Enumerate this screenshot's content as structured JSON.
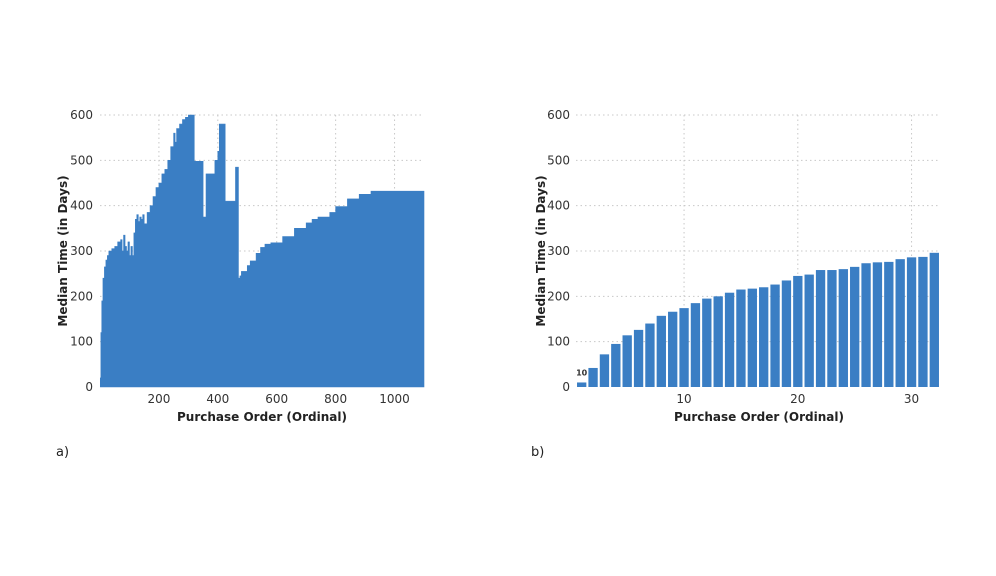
{
  "panels": [
    {
      "label": "a)"
    },
    {
      "label": "b)"
    }
  ],
  "colors": {
    "bar": "#3a7ec4",
    "grid": "#c8c8c8"
  },
  "chart_data": [
    {
      "type": "area",
      "xlabel": "Purchase Order (Ordinal)",
      "ylabel": "Median Time (in Days)",
      "xlim": [
        0,
        1100
      ],
      "ylim": [
        0,
        600
      ],
      "xticks": [
        200,
        400,
        600,
        800,
        1000
      ],
      "yticks": [
        0,
        100,
        200,
        300,
        400,
        500,
        600
      ],
      "grid": true,
      "series": [
        {
          "x": [
            1,
            3,
            6,
            10,
            15,
            20,
            25,
            30,
            40,
            50,
            60,
            70,
            75,
            80,
            85,
            90,
            95,
            100,
            105,
            110,
            115,
            120,
            125,
            130,
            135,
            140,
            145,
            150,
            160,
            170,
            180,
            190,
            200,
            210,
            220,
            230,
            240,
            250,
            255,
            260,
            270,
            280,
            290,
            300,
            310,
            320,
            330,
            340,
            350,
            360,
            370,
            372,
            380,
            390,
            400,
            405,
            410,
            420,
            425,
            440,
            460,
            470,
            475,
            480,
            490,
            500,
            505,
            510,
            520,
            530,
            540,
            545,
            550,
            560,
            580,
            600,
            620,
            640,
            660,
            680,
            700,
            720,
            740,
            760,
            780,
            800,
            820,
            840,
            860,
            880,
            900,
            920,
            940,
            960,
            980,
            1000,
            1020,
            1040,
            1060,
            1080,
            1100
          ],
          "y": [
            20,
            120,
            190,
            240,
            265,
            280,
            290,
            300,
            305,
            310,
            320,
            325,
            300,
            335,
            310,
            300,
            320,
            290,
            310,
            290,
            340,
            370,
            380,
            365,
            375,
            370,
            380,
            360,
            385,
            400,
            420,
            440,
            450,
            470,
            480,
            500,
            530,
            560,
            540,
            570,
            580,
            590,
            595,
            600,
            600,
            498,
            498,
            498,
            375,
            470,
            470,
            470,
            470,
            500,
            520,
            580,
            580,
            580,
            410,
            410,
            485,
            240,
            245,
            255,
            255,
            268,
            268,
            278,
            278,
            295,
            295,
            308,
            308,
            315,
            318,
            318,
            332,
            332,
            350,
            350,
            362,
            370,
            375,
            375,
            385,
            398,
            398,
            415,
            415,
            425,
            425,
            432,
            432,
            432,
            432,
            432,
            432,
            432,
            432,
            432,
            432
          ]
        }
      ]
    },
    {
      "type": "bar",
      "xlabel": "Purchase Order (Ordinal)",
      "ylabel": "Median Time (in Days)",
      "xlim": [
        0.5,
        32.5
      ],
      "ylim": [
        0,
        600
      ],
      "xticks": [
        10,
        20,
        30
      ],
      "yticks": [
        0,
        100,
        200,
        300,
        400,
        500,
        600
      ],
      "grid": true,
      "categories": [
        1,
        2,
        3,
        4,
        5,
        6,
        7,
        8,
        9,
        10,
        11,
        12,
        13,
        14,
        15,
        16,
        17,
        18,
        19,
        20,
        21,
        22,
        23,
        24,
        25,
        26,
        27,
        28,
        29,
        30,
        31,
        32
      ],
      "values": [
        10,
        42,
        72,
        95,
        114,
        126,
        140,
        157,
        166,
        174,
        185,
        195,
        200,
        208,
        215,
        217,
        220,
        226,
        235,
        245,
        248,
        258,
        258,
        260,
        265,
        273,
        275,
        276,
        282,
        286,
        287,
        296
      ],
      "annotations": [
        {
          "index": 0,
          "text": "10"
        }
      ]
    }
  ]
}
